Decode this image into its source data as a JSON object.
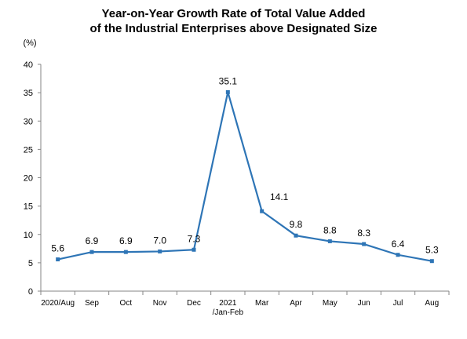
{
  "chart_data": {
    "type": "line",
    "title_lines": [
      "Year-on-Year Growth Rate of Total Value Added",
      "of the Industrial Enterprises above Designated Size"
    ],
    "ylabel": "(%)",
    "xlabel": "",
    "ylim": [
      0,
      40
    ],
    "yticks": [
      "0",
      "5",
      "10",
      "15",
      "20",
      "25",
      "30",
      "35",
      "40"
    ],
    "grid": false,
    "legend": false,
    "categories": [
      [
        "2020/Aug"
      ],
      [
        "Sep"
      ],
      [
        "Oct"
      ],
      [
        "Nov"
      ],
      [
        "Dec"
      ],
      [
        "2021",
        "/Jan-Feb"
      ],
      [
        "Mar"
      ],
      [
        "Apr"
      ],
      [
        "May"
      ],
      [
        "Jun"
      ],
      [
        "Jul"
      ],
      [
        "Aug"
      ]
    ],
    "series": [
      {
        "values": [
          5.6,
          6.9,
          6.9,
          7.0,
          7.3,
          35.1,
          14.1,
          9.8,
          8.8,
          8.3,
          6.4,
          5.3
        ],
        "labels": [
          "5.6",
          "6.9",
          "6.9",
          "7.0",
          "7.3",
          "35.1",
          "14.1",
          "9.8",
          "8.8",
          "8.3",
          "6.4",
          "5.3"
        ],
        "color": "#2e75b6"
      }
    ]
  }
}
